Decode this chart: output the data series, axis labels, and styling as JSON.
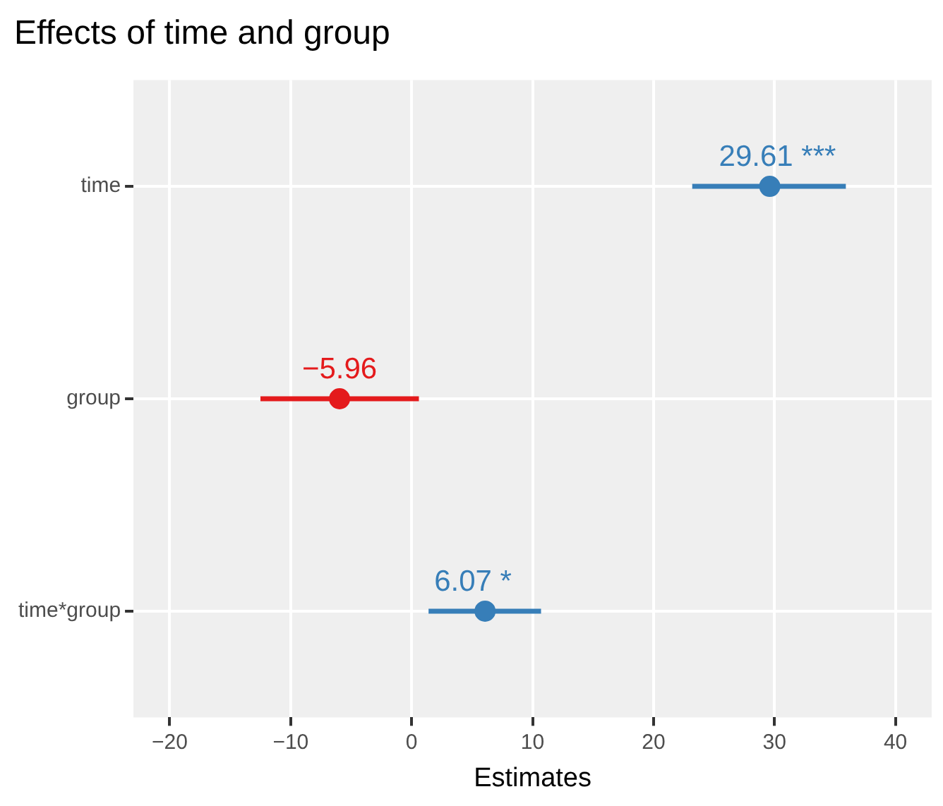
{
  "chart_data": {
    "type": "scatter",
    "orientation": "horizontal",
    "title": "Effects of time and group",
    "xlabel": "Estimates",
    "categories": [
      "time",
      "group",
      "time*group"
    ],
    "values": [
      29.61,
      -5.96,
      6.07
    ],
    "colors": [
      "#377eb8",
      "#e41a1c",
      "#377eb8"
    ],
    "errors": [
      [
        23.2,
        35.9
      ],
      [
        -12.5,
        0.6
      ],
      [
        1.4,
        10.7
      ]
    ],
    "value_labels": [
      "29.61 ***",
      "−5.96",
      "6.07 *"
    ],
    "xlim": [
      -23,
      43
    ],
    "xticks": [
      -20,
      -10,
      0,
      10,
      20,
      30,
      40
    ],
    "grid": true,
    "marker": "circle"
  }
}
